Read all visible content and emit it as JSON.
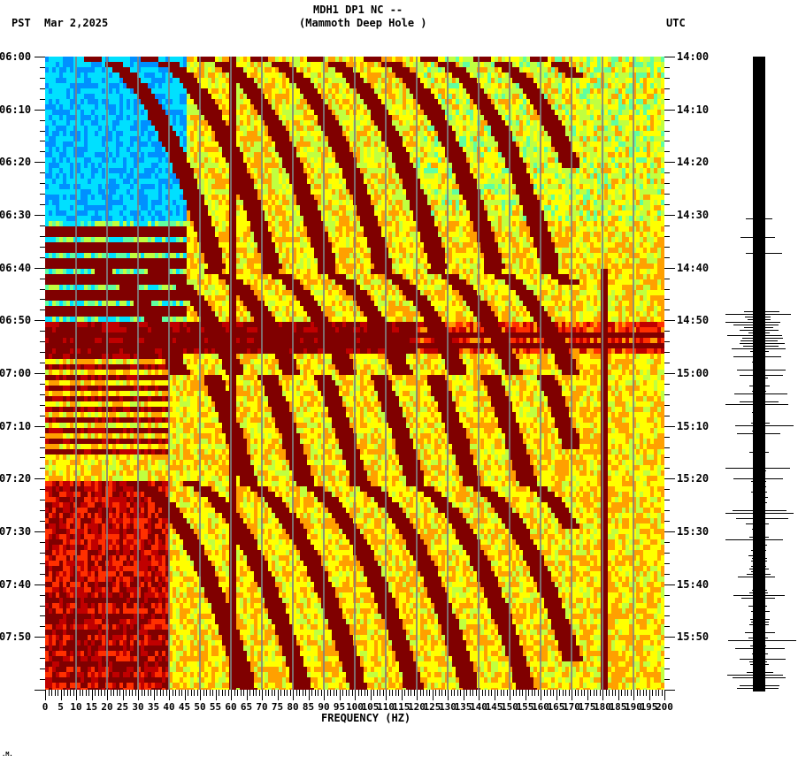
{
  "header": {
    "station": "MDH1 DP1 NC --",
    "location": "(Mammoth Deep Hole )",
    "left_tz": "PST",
    "date": "Mar 2,2025",
    "right_tz": "UTC"
  },
  "footer_mark": ".M.",
  "chart_data": {
    "type": "heatmap",
    "title": "MDH1 DP1 NC -- (Mammoth Deep Hole )",
    "subtitle": "Mar 2,2025",
    "xlabel": "FREQUENCY (HZ)",
    "ylabel_left": "PST",
    "ylabel_right": "UTC",
    "xlim": [
      0,
      200
    ],
    "x_ticks": [
      0,
      5,
      10,
      15,
      20,
      25,
      30,
      35,
      40,
      45,
      50,
      55,
      60,
      65,
      70,
      75,
      80,
      85,
      90,
      95,
      100,
      105,
      110,
      115,
      120,
      125,
      130,
      135,
      140,
      145,
      150,
      155,
      160,
      165,
      170,
      175,
      180,
      185,
      190,
      195,
      200
    ],
    "y_ticks_left": [
      "06:00",
      "06:10",
      "06:20",
      "06:30",
      "06:40",
      "06:50",
      "07:00",
      "07:10",
      "07:20",
      "07:30",
      "07:40",
      "07:50"
    ],
    "y_ticks_right": [
      "14:00",
      "14:10",
      "14:20",
      "14:30",
      "14:40",
      "14:50",
      "15:00",
      "15:10",
      "15:20",
      "15:30",
      "15:40",
      "15:50"
    ],
    "time_range_minutes": [
      0,
      120
    ],
    "grid_x_every_hz": 10,
    "colormap": [
      "#0040ff",
      "#0090ff",
      "#00e0ff",
      "#60ffa0",
      "#c0ff40",
      "#ffff00",
      "#ffa000",
      "#ff3000",
      "#c00000",
      "#800000"
    ],
    "features": {
      "persistent_line_hz": 60,
      "secondary_line_hz": 180,
      "quiet_low_freq_interval": [
        "06:00",
        "06:30"
      ],
      "broadband_event_interval": [
        "06:50",
        "06:55"
      ],
      "noise_bursts_low_freq": [
        "06:31-06:50",
        "06:55-07:20",
        "07:50-08:00"
      ],
      "gliding_harmonics": "curved bands sweeping upward in frequency with time, spacing ~15-20 Hz"
    },
    "seismogram": {
      "position": "right",
      "largest_amplitude_times": [
        "06:50-06:55",
        "07:40-07:55"
      ]
    }
  }
}
